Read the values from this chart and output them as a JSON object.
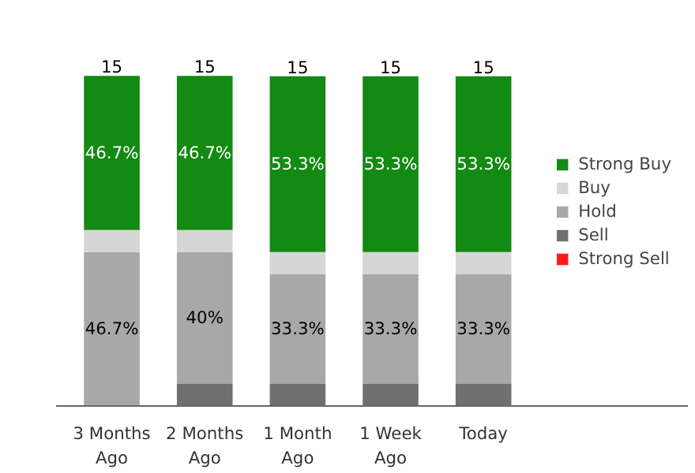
{
  "chart_data": {
    "type": "bar",
    "stacked": true,
    "categories": [
      "3 Months\nAgo",
      "2 Months\nAgo",
      "1 Month\nAgo",
      "1 Week\nAgo",
      "Today"
    ],
    "series": [
      {
        "name": "Strong Sell",
        "color": "#ff1a1a",
        "values": [
          0,
          0,
          0,
          0,
          0
        ]
      },
      {
        "name": "Sell",
        "color": "#707070",
        "values": [
          0,
          6.7,
          6.7,
          6.7,
          6.7
        ]
      },
      {
        "name": "Hold",
        "color": "#a8a8a8",
        "values": [
          46.7,
          40,
          33.3,
          33.3,
          33.3
        ],
        "value_labels": [
          "46.7%",
          "40%",
          "33.3%",
          "33.3%",
          "33.3%"
        ]
      },
      {
        "name": "Buy",
        "color": "#d6d6d6",
        "values": [
          6.7,
          6.7,
          6.7,
          6.7,
          6.7
        ]
      },
      {
        "name": "Strong Buy",
        "color": "#138a13",
        "values": [
          46.7,
          46.7,
          53.3,
          53.3,
          53.3
        ],
        "value_labels": [
          "46.7%",
          "46.7%",
          "53.3%",
          "53.3%",
          "53.3%"
        ]
      }
    ],
    "annotations": [
      "15",
      "15",
      "15",
      "15",
      "15"
    ],
    "legend": "right"
  }
}
